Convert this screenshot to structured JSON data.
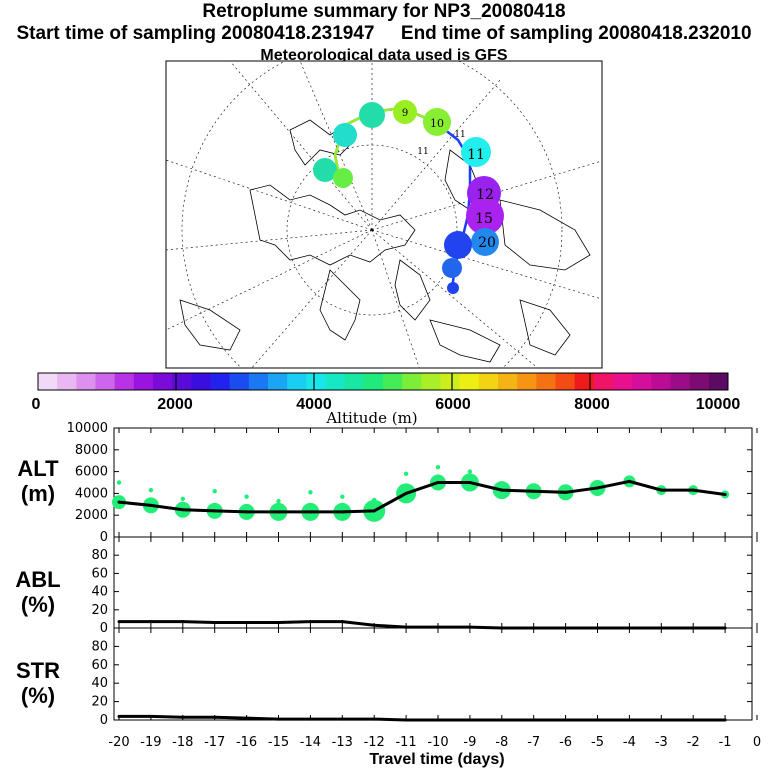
{
  "title": "Retroplume summary for NP3_20080418",
  "start_label": "Start time of sampling 20080418.231947",
  "end_label": "End time of sampling 20080418.232010",
  "met_label": "Meteorological data used is GFS",
  "colorbar": {
    "ticks": [
      "0",
      "2000",
      "4000",
      "6000",
      "8000",
      "10000"
    ],
    "label": "Altitude (m)"
  },
  "colors": {
    "plume_green": "#22ee77",
    "line": "#000000",
    "track_blue": "#1a3cff",
    "track_green": "#99ee22"
  },
  "map": {
    "markers": [
      "11",
      "12",
      "15",
      "20",
      "10",
      "9",
      "11",
      "11"
    ]
  },
  "chart_data": [
    {
      "type": "line",
      "name": "ALT",
      "ylabel": "ALT",
      "yunit": "(m)",
      "ylim": [
        0,
        10000
      ],
      "yticks": [
        0,
        2000,
        4000,
        6000,
        8000,
        10000
      ],
      "x": [
        -20,
        -19,
        -18,
        -17,
        -16,
        -15,
        -14,
        -13,
        -12,
        -11,
        -10,
        -9,
        -8,
        -7,
        -6,
        -5,
        -4,
        -3,
        -2,
        -1
      ],
      "values": [
        3200,
        2900,
        2500,
        2400,
        2300,
        2300,
        2300,
        2300,
        2400,
        4000,
        5000,
        5000,
        4300,
        4200,
        4100,
        4500,
        5100,
        4300,
        4300,
        3900
      ]
    },
    {
      "type": "line",
      "name": "ABL",
      "ylabel": "ABL",
      "yunit": "(%)",
      "ylim": [
        0,
        100
      ],
      "yticks": [
        0,
        20,
        40,
        60,
        80
      ],
      "x": [
        -20,
        -19,
        -18,
        -17,
        -16,
        -15,
        -14,
        -13,
        -12,
        -11,
        -10,
        -9,
        -8,
        -7,
        -6,
        -5,
        -4,
        -3,
        -2,
        -1
      ],
      "values": [
        7,
        7,
        7,
        6,
        6,
        6,
        7,
        7,
        3,
        1,
        1,
        1,
        0,
        0,
        0,
        0,
        0,
        0,
        0,
        0
      ]
    },
    {
      "type": "line",
      "name": "STR",
      "ylabel": "STR",
      "yunit": "(%)",
      "ylim": [
        0,
        100
      ],
      "yticks": [
        0,
        20,
        40,
        60,
        80
      ],
      "x": [
        -20,
        -19,
        -18,
        -17,
        -16,
        -15,
        -14,
        -13,
        -12,
        -11,
        -10,
        -9,
        -8,
        -7,
        -6,
        -5,
        -4,
        -3,
        -2,
        -1
      ],
      "values": [
        4,
        4,
        3,
        3,
        2,
        1,
        1,
        1,
        1,
        0,
        0,
        0,
        0,
        0,
        0,
        0,
        0,
        0,
        0,
        0
      ]
    }
  ],
  "xaxis": {
    "label": "Travel time (days)",
    "ticks": [
      "-20",
      "-19",
      "-18",
      "-17",
      "-16",
      "-15",
      "-14",
      "-13",
      "-12",
      "-11",
      "-10",
      "-9",
      "-8",
      "-7",
      "-6",
      "-5",
      "-4",
      "-3",
      "-2",
      "-1",
      "0"
    ]
  }
}
